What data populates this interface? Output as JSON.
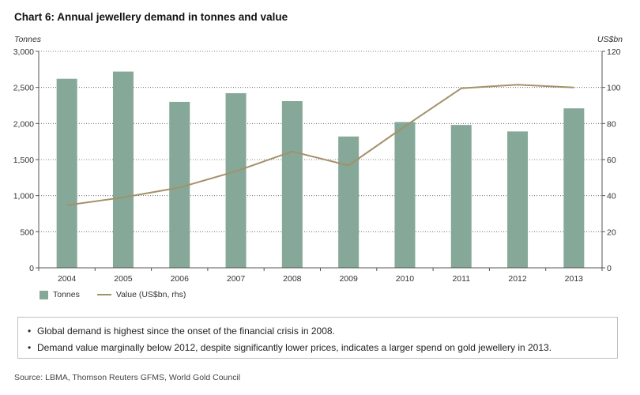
{
  "title": "Chart 6: Annual jewellery demand in tonnes and value",
  "unit_left": "Tonnes",
  "unit_right": "US$bn",
  "chart_data": {
    "type": "bar",
    "title": "Chart 6: Annual jewellery demand in tonnes and value",
    "categories": [
      "2004",
      "2005",
      "2006",
      "2007",
      "2008",
      "2009",
      "2010",
      "2011",
      "2012",
      "2013"
    ],
    "series": [
      {
        "name": "Tonnes",
        "type": "bar",
        "axis": "left",
        "color": "#86a898",
        "values": [
          2620,
          2720,
          2300,
          2420,
          2310,
          1820,
          2020,
          1980,
          1890,
          2210
        ]
      },
      {
        "name": "Value (US$bn, rhs)",
        "type": "line",
        "axis": "right",
        "color": "#a3916a",
        "values": [
          34.7,
          39,
          44.5,
          53.5,
          64.5,
          56.7,
          78.5,
          99.5,
          101.5,
          100
        ]
      }
    ],
    "y_left": {
      "label": "Tonnes",
      "min": 0,
      "max": 3000,
      "ticks": [
        0,
        500,
        1000,
        1500,
        2000,
        2500,
        3000
      ],
      "tick_labels": [
        "0",
        "500",
        "1,000",
        "1,500",
        "2,000",
        "2,500",
        "3,000"
      ]
    },
    "y_right": {
      "label": "US$bn",
      "min": 0,
      "max": 120,
      "ticks": [
        0,
        20,
        40,
        60,
        80,
        100,
        120
      ],
      "tick_labels": [
        "0",
        "20",
        "40",
        "60",
        "80",
        "100",
        "120"
      ]
    },
    "grid": "horizontal-dotted",
    "legend_position": "bottom-left"
  },
  "legend": {
    "bar_label": "Tonnes",
    "line_label": "Value (US$bn, rhs)"
  },
  "notes": [
    "Global demand is highest since the onset of the financial crisis in 2008.",
    "Demand value marginally below 2012, despite significantly lower prices, indicates a larger spend on gold jewellery in 2013."
  ],
  "source": "Source: LBMA, Thomson Reuters GFMS, World Gold Council"
}
